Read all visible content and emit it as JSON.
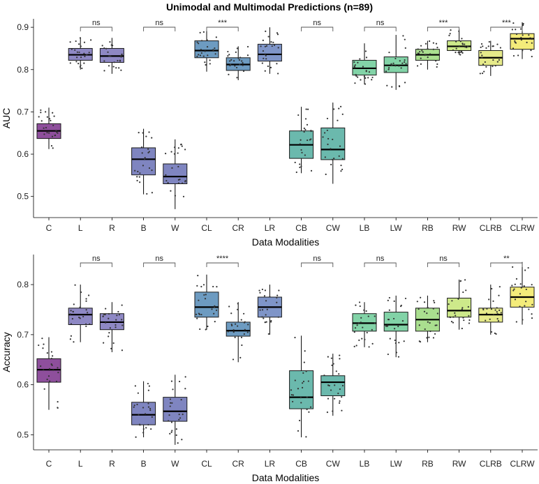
{
  "title": "Unimodal and Multimodal Predictions (n=89)",
  "chart_data": [
    {
      "type": "box",
      "ylabel": "AUC",
      "xlabel": "Data Modalities",
      "ylim": [
        0.45,
        0.92
      ],
      "yticks": [
        0.5,
        0.6,
        0.7,
        0.8,
        0.9
      ],
      "ytick_labels": [
        "0.5",
        "0.6",
        "0.7",
        "0.8",
        "0.9"
      ],
      "grid": false,
      "categories": [
        "C",
        "L",
        "R",
        "B",
        "W",
        "CL",
        "CR",
        "LR",
        "CB",
        "CW",
        "LB",
        "LW",
        "RB",
        "RW",
        "CLRB",
        "CLRW"
      ],
      "colors": [
        "#8e4f9c",
        "#8e88c4",
        "#8e88c4",
        "#7f85c0",
        "#7f85c0",
        "#6d9bc1",
        "#6d9bc1",
        "#7f95c8",
        "#6bb9ad",
        "#6bb9ad",
        "#82d3a7",
        "#82d3a7",
        "#aadf8f",
        "#cde98a",
        "#e6ea8a",
        "#f4ec7a"
      ],
      "boxes": [
        {
          "q1": 0.637,
          "median": 0.655,
          "q3": 0.672,
          "whisker_low": 0.612,
          "whisker_high": 0.71
        },
        {
          "q1": 0.822,
          "median": 0.835,
          "q3": 0.85,
          "whisker_low": 0.8,
          "whisker_high": 0.875
        },
        {
          "q1": 0.817,
          "median": 0.832,
          "q3": 0.85,
          "whisker_low": 0.79,
          "whisker_high": 0.875
        },
        {
          "q1": 0.551,
          "median": 0.588,
          "q3": 0.615,
          "whisker_low": 0.505,
          "whisker_high": 0.66
        },
        {
          "q1": 0.53,
          "median": 0.547,
          "q3": 0.577,
          "whisker_low": 0.47,
          "whisker_high": 0.635
        },
        {
          "q1": 0.828,
          "median": 0.845,
          "q3": 0.868,
          "whisker_low": 0.795,
          "whisker_high": 0.892
        },
        {
          "q1": 0.798,
          "median": 0.812,
          "q3": 0.828,
          "whisker_low": 0.775,
          "whisker_high": 0.855
        },
        {
          "q1": 0.82,
          "median": 0.836,
          "q3": 0.86,
          "whisker_low": 0.79,
          "whisker_high": 0.9
        },
        {
          "q1": 0.59,
          "median": 0.622,
          "q3": 0.655,
          "whisker_low": 0.555,
          "whisker_high": 0.712
        },
        {
          "q1": 0.587,
          "median": 0.611,
          "q3": 0.662,
          "whisker_low": 0.53,
          "whisker_high": 0.722
        },
        {
          "q1": 0.787,
          "median": 0.803,
          "q3": 0.822,
          "whisker_low": 0.765,
          "whisker_high": 0.862
        },
        {
          "q1": 0.793,
          "median": 0.81,
          "q3": 0.83,
          "whisker_low": 0.752,
          "whisker_high": 0.882
        },
        {
          "q1": 0.822,
          "median": 0.835,
          "q3": 0.848,
          "whisker_low": 0.8,
          "whisker_high": 0.868
        },
        {
          "q1": 0.845,
          "median": 0.855,
          "q3": 0.868,
          "whisker_low": 0.835,
          "whisker_high": 0.895
        },
        {
          "q1": 0.81,
          "median": 0.828,
          "q3": 0.845,
          "whisker_low": 0.785,
          "whisker_high": 0.868
        },
        {
          "q1": 0.848,
          "median": 0.873,
          "q3": 0.885,
          "whisker_low": 0.825,
          "whisker_high": 0.912
        }
      ],
      "comparisons": [
        {
          "from": "L",
          "to": "R",
          "label": "ns"
        },
        {
          "from": "B",
          "to": "W",
          "label": "ns"
        },
        {
          "from": "CL",
          "to": "CR",
          "label": "***"
        },
        {
          "from": "CB",
          "to": "CW",
          "label": "ns"
        },
        {
          "from": "LB",
          "to": "LW",
          "label": "ns"
        },
        {
          "from": "RB",
          "to": "RW",
          "label": "***"
        },
        {
          "from": "CLRB",
          "to": "CLRW",
          "label": "***"
        }
      ]
    },
    {
      "type": "box",
      "ylabel": "Accuracy",
      "xlabel": "Data Modalities",
      "ylim": [
        0.47,
        0.86
      ],
      "yticks": [
        0.5,
        0.6,
        0.7,
        0.8
      ],
      "ytick_labels": [
        "0.5",
        "0.6",
        "0.7",
        "0.8"
      ],
      "grid": false,
      "categories": [
        "C",
        "L",
        "R",
        "B",
        "W",
        "CL",
        "CR",
        "LR",
        "CB",
        "CW",
        "LB",
        "LW",
        "RB",
        "RW",
        "CLRB",
        "CLRW"
      ],
      "colors": [
        "#8e4f9c",
        "#8e88c4",
        "#8e88c4",
        "#7f85c0",
        "#7f85c0",
        "#6d9bc1",
        "#6d9bc1",
        "#7f95c8",
        "#6bb9ad",
        "#6bb9ad",
        "#82d3a7",
        "#82d3a7",
        "#aadf8f",
        "#cde98a",
        "#e6ea8a",
        "#f4ec7a"
      ],
      "boxes": [
        {
          "q1": 0.605,
          "median": 0.63,
          "q3": 0.652,
          "whisker_low": 0.55,
          "whisker_high": 0.695
        },
        {
          "q1": 0.72,
          "median": 0.74,
          "q3": 0.753,
          "whisker_low": 0.685,
          "whisker_high": 0.8
        },
        {
          "q1": 0.71,
          "median": 0.725,
          "q3": 0.742,
          "whisker_low": 0.665,
          "whisker_high": 0.765
        },
        {
          "q1": 0.52,
          "median": 0.54,
          "q3": 0.565,
          "whisker_low": 0.495,
          "whisker_high": 0.607
        },
        {
          "q1": 0.527,
          "median": 0.547,
          "q3": 0.575,
          "whisker_low": 0.48,
          "whisker_high": 0.62
        },
        {
          "q1": 0.735,
          "median": 0.755,
          "q3": 0.785,
          "whisker_low": 0.71,
          "whisker_high": 0.82
        },
        {
          "q1": 0.697,
          "median": 0.708,
          "q3": 0.725,
          "whisker_low": 0.645,
          "whisker_high": 0.765
        },
        {
          "q1": 0.735,
          "median": 0.755,
          "q3": 0.775,
          "whisker_low": 0.7,
          "whisker_high": 0.8
        },
        {
          "q1": 0.552,
          "median": 0.575,
          "q3": 0.628,
          "whisker_low": 0.495,
          "whisker_high": 0.698
        },
        {
          "q1": 0.578,
          "median": 0.605,
          "q3": 0.618,
          "whisker_low": 0.538,
          "whisker_high": 0.662
        },
        {
          "q1": 0.707,
          "median": 0.723,
          "q3": 0.742,
          "whisker_low": 0.675,
          "whisker_high": 0.765
        },
        {
          "q1": 0.707,
          "median": 0.72,
          "q3": 0.745,
          "whisker_low": 0.655,
          "whisker_high": 0.778
        },
        {
          "q1": 0.707,
          "median": 0.73,
          "q3": 0.753,
          "whisker_low": 0.685,
          "whisker_high": 0.778
        },
        {
          "q1": 0.735,
          "median": 0.748,
          "q3": 0.773,
          "whisker_low": 0.71,
          "whisker_high": 0.81
        },
        {
          "q1": 0.725,
          "median": 0.74,
          "q3": 0.753,
          "whisker_low": 0.7,
          "whisker_high": 0.8
        },
        {
          "q1": 0.755,
          "median": 0.775,
          "q3": 0.795,
          "whisker_low": 0.72,
          "whisker_high": 0.845
        }
      ],
      "comparisons": [
        {
          "from": "L",
          "to": "R",
          "label": "ns"
        },
        {
          "from": "B",
          "to": "W",
          "label": "ns"
        },
        {
          "from": "CL",
          "to": "CR",
          "label": "****"
        },
        {
          "from": "CB",
          "to": "CW",
          "label": "ns"
        },
        {
          "from": "LB",
          "to": "LW",
          "label": "ns"
        },
        {
          "from": "RB",
          "to": "RW",
          "label": "ns"
        },
        {
          "from": "CLRB",
          "to": "CLRW",
          "label": "**"
        }
      ]
    }
  ]
}
